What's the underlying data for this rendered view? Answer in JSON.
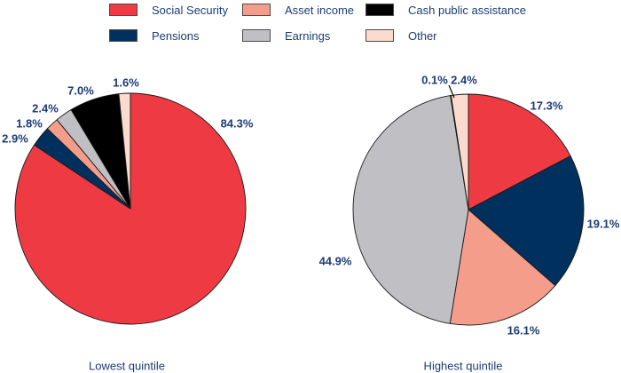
{
  "colors": {
    "text": "#1b3c74",
    "slice_outline": "#1a1a1a",
    "social_security": "#ee3a43",
    "asset_income": "#f59d8b",
    "cash_public_assistance": "#000000",
    "pensions": "#00305e",
    "earnings": "#c0c0c4",
    "other": "#fbdbce"
  },
  "legend": {
    "items": [
      {
        "label": "Social Security",
        "color": "#ee3a43"
      },
      {
        "label": "Asset income",
        "color": "#f59d8b"
      },
      {
        "label": "Cash public assistance",
        "color": "#000000"
      },
      {
        "label": "Pensions",
        "color": "#00305e"
      },
      {
        "label": "Earnings",
        "color": "#c0c0c4"
      },
      {
        "label": "Other",
        "color": "#fbdbce"
      }
    ]
  },
  "chart_data": [
    {
      "type": "pie",
      "title": "Lowest quintile",
      "categories": [
        "Social Security",
        "Pensions",
        "Asset income",
        "Earnings",
        "Cash public assistance",
        "Other"
      ],
      "values": [
        84.3,
        2.9,
        1.8,
        2.4,
        7.0,
        1.6
      ],
      "labels": [
        "84.3%",
        "2.9%",
        "1.8%",
        "2.4%",
        "7.0%",
        "1.6%"
      ],
      "colors": [
        "#ee3a43",
        "#00305e",
        "#f59d8b",
        "#c0c0c4",
        "#000000",
        "#fbdbce"
      ],
      "start_angle_deg": 0,
      "direction": "clockwise",
      "legend_position": "top"
    },
    {
      "type": "pie",
      "title": "Highest quintile",
      "categories": [
        "Social Security",
        "Pensions",
        "Asset income",
        "Earnings",
        "Cash public assistance",
        "Other"
      ],
      "values": [
        17.3,
        19.1,
        16.1,
        44.9,
        0.1,
        2.4
      ],
      "labels": [
        "17.3%",
        "19.1%",
        "16.1%",
        "44.9%",
        "0.1%",
        "2.4%"
      ],
      "colors": [
        "#ee3a43",
        "#00305e",
        "#f59d8b",
        "#c0c0c4",
        "#000000",
        "#fbdbce"
      ],
      "start_angle_deg": 0,
      "direction": "clockwise",
      "legend_position": "top"
    }
  ]
}
